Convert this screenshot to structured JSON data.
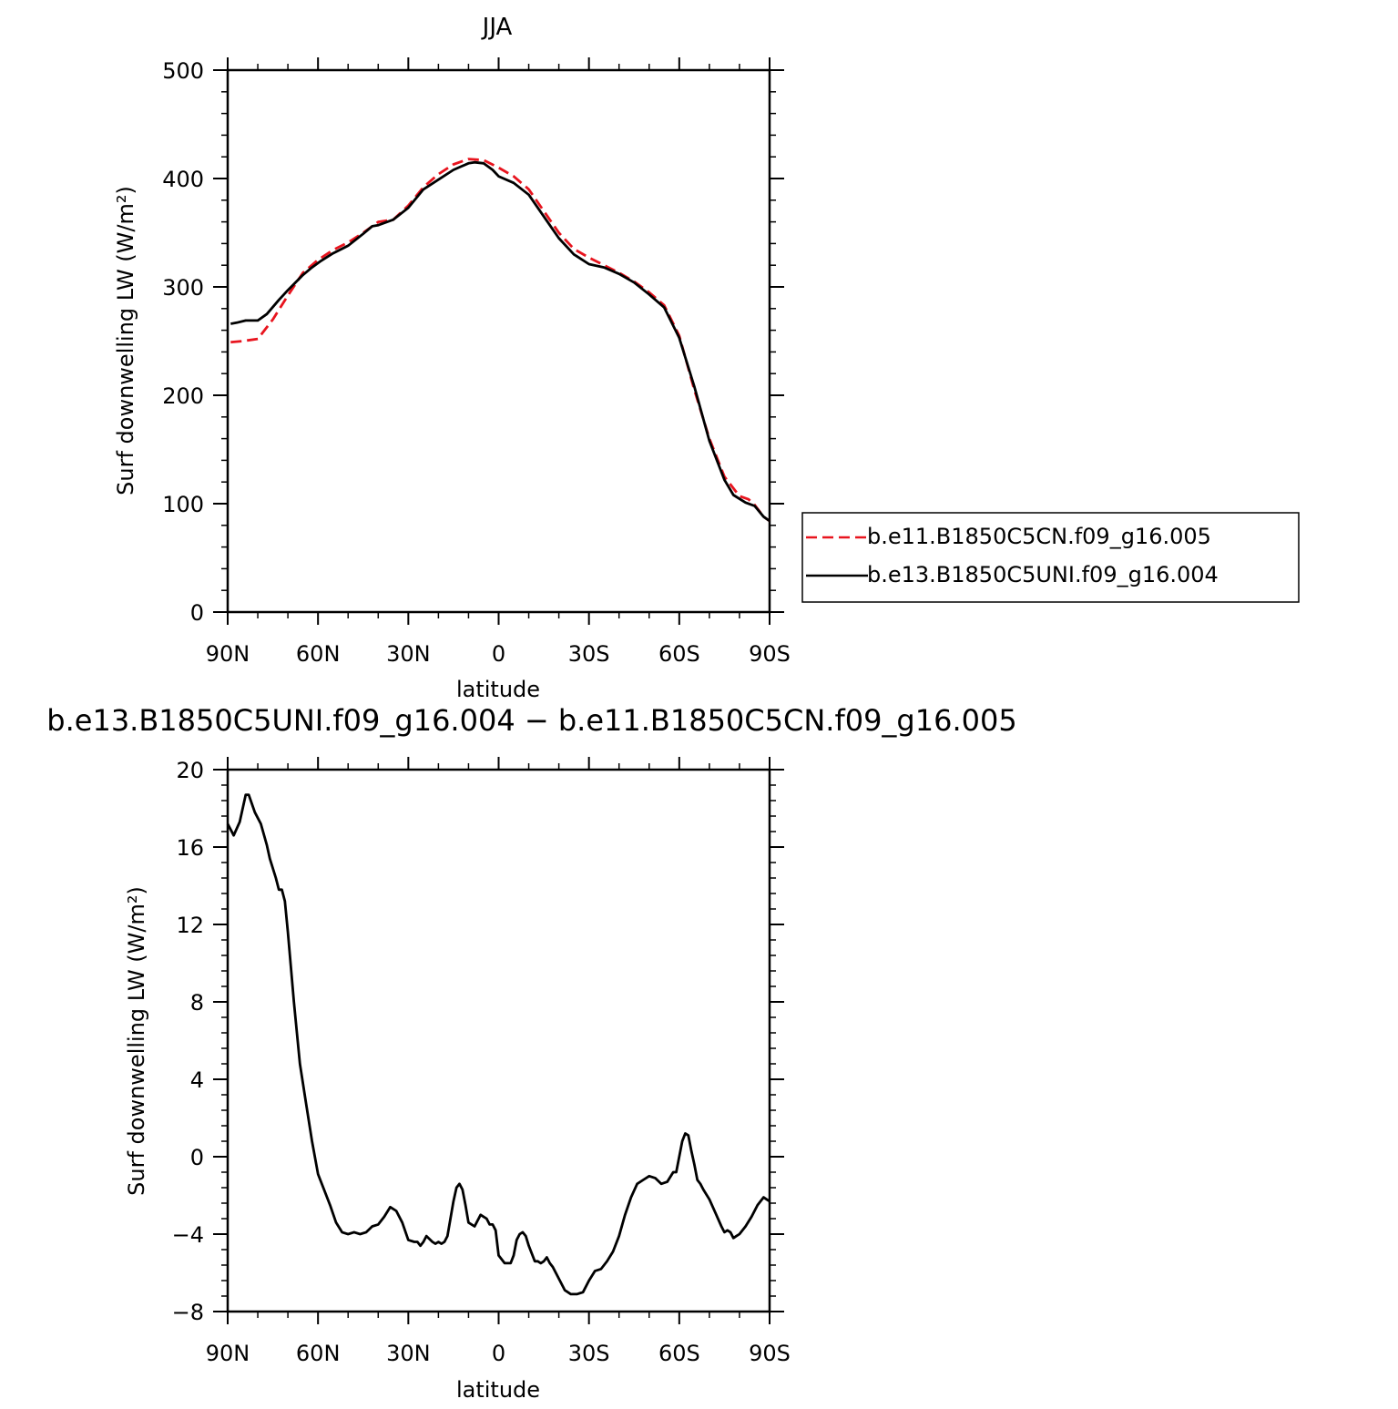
{
  "chart_data": [
    {
      "type": "line",
      "title": "JJA",
      "xlabel": "latitude",
      "ylabel": "Surf downwelling LW (W/m²)",
      "xlim": [
        90,
        -90
      ],
      "ylim": [
        0,
        500
      ],
      "x_ticks": [
        {
          "value": 90,
          "label": "90N"
        },
        {
          "value": 60,
          "label": "60N"
        },
        {
          "value": 30,
          "label": "30N"
        },
        {
          "value": 0,
          "label": "0"
        },
        {
          "value": -30,
          "label": "30S"
        },
        {
          "value": -60,
          "label": "60S"
        },
        {
          "value": -90,
          "label": "90S"
        }
      ],
      "y_ticks": [
        {
          "value": 0,
          "label": "0"
        },
        {
          "value": 100,
          "label": "100"
        },
        {
          "value": 200,
          "label": "200"
        },
        {
          "value": 300,
          "label": "300"
        },
        {
          "value": 400,
          "label": "400"
        },
        {
          "value": 500,
          "label": "500"
        }
      ],
      "legend_placement": "right",
      "series": [
        {
          "name": "b.e11.B1850C5CN.f09_g16.005",
          "color": "#e8141e",
          "dash": "dashed",
          "x": [
            89,
            85,
            80,
            75,
            70,
            65,
            60,
            55,
            50,
            45,
            40,
            35,
            30,
            25,
            20,
            15,
            10,
            5,
            0,
            -5,
            -10,
            -15,
            -20,
            -25,
            -30,
            -35,
            -40,
            -45,
            -50,
            -55,
            -60,
            -65,
            -70,
            -75,
            -80,
            -83,
            -85,
            -88,
            -90
          ],
          "y": [
            249,
            250,
            252,
            270,
            292,
            313,
            325,
            334,
            341,
            350,
            360,
            362,
            375,
            392,
            404,
            413,
            418,
            417,
            410,
            402,
            390,
            370,
            350,
            335,
            327,
            320,
            313,
            305,
            295,
            283,
            255,
            205,
            160,
            125,
            107,
            104,
            99,
            88,
            84
          ]
        },
        {
          "name": "b.e13.B1850C5UNI.f09_g16.004",
          "color": "#000000",
          "dash": "solid",
          "x": [
            89,
            87,
            84,
            80,
            77,
            73,
            70,
            65,
            62,
            59,
            55,
            50,
            45,
            42,
            40,
            35,
            30,
            25,
            20,
            15,
            10,
            8,
            5,
            2,
            0,
            -5,
            -10,
            -15,
            -20,
            -25,
            -30,
            -35,
            -40,
            -45,
            -50,
            -55,
            -60,
            -65,
            -70,
            -75,
            -78,
            -82,
            -85,
            -88,
            -90
          ],
          "y": [
            266,
            267,
            269,
            269,
            275,
            288,
            297,
            311,
            318,
            324,
            331,
            338,
            349,
            356,
            357,
            362,
            373,
            390,
            399,
            408,
            414,
            415,
            414,
            408,
            402,
            396,
            385,
            365,
            345,
            330,
            321,
            318,
            312,
            304,
            293,
            281,
            253,
            208,
            158,
            122,
            108,
            101,
            98,
            88,
            84
          ]
        }
      ]
    },
    {
      "type": "line",
      "title": "b.e13.B1850C5UNI.f09_g16.004 − b.e11.B1850C5CN.f09_g16.005",
      "xlabel": "latitude",
      "ylabel": "Surf downwelling LW (W/m²)",
      "xlim": [
        90,
        -90
      ],
      "ylim": [
        -8,
        20
      ],
      "x_ticks": [
        {
          "value": 90,
          "label": "90N"
        },
        {
          "value": 60,
          "label": "60N"
        },
        {
          "value": 30,
          "label": "30N"
        },
        {
          "value": 0,
          "label": "0"
        },
        {
          "value": -30,
          "label": "30S"
        },
        {
          "value": -60,
          "label": "60S"
        },
        {
          "value": -90,
          "label": "90S"
        }
      ],
      "y_ticks": [
        {
          "value": -8,
          "label": "−8"
        },
        {
          "value": -4,
          "label": "−4"
        },
        {
          "value": 0,
          "label": "0"
        },
        {
          "value": 4,
          "label": "4"
        },
        {
          "value": 8,
          "label": "8"
        },
        {
          "value": 12,
          "label": "12"
        },
        {
          "value": 16,
          "label": "16"
        },
        {
          "value": 20,
          "label": "20"
        }
      ],
      "series": [
        {
          "color": "#000000",
          "dash": "solid",
          "x": [
            90,
            88,
            86,
            84,
            83,
            81,
            79,
            77,
            76,
            74,
            73,
            72,
            71,
            70,
            68,
            66,
            64,
            62,
            60,
            58,
            56,
            54,
            52,
            50,
            48,
            46,
            44,
            42,
            40,
            38,
            36,
            34,
            32,
            30,
            28,
            27,
            26,
            25,
            24,
            22,
            21,
            20,
            19,
            18,
            17,
            16,
            15,
            14,
            13,
            12,
            11,
            10,
            9,
            8,
            7,
            6,
            5,
            4,
            3,
            2,
            1,
            0,
            -2,
            -4,
            -5,
            -6,
            -7,
            -8,
            -9,
            -10,
            -11,
            -12,
            -13,
            -14,
            -15,
            -16,
            -17,
            -18,
            -20,
            -22,
            -24,
            -26,
            -28,
            -30,
            -32,
            -34,
            -36,
            -38,
            -40,
            -42,
            -44,
            -46,
            -48,
            -50,
            -52,
            -54,
            -56,
            -58,
            -59,
            -60,
            -61,
            -62,
            -63,
            -64,
            -65,
            -66,
            -67,
            -68,
            -70,
            -72,
            -74,
            -75,
            -76,
            -77,
            -78,
            -79,
            -80,
            -82,
            -84,
            -86,
            -87,
            -88,
            -89,
            -90
          ],
          "y": [
            17.2,
            16.6,
            17.3,
            18.7,
            18.7,
            17.8,
            17.2,
            16.1,
            15.4,
            14.4,
            13.8,
            13.8,
            13.2,
            11.6,
            8.0,
            4.8,
            2.8,
            0.8,
            -0.9,
            -1.7,
            -2.5,
            -3.4,
            -3.9,
            -4.0,
            -3.9,
            -4.0,
            -3.9,
            -3.6,
            -3.5,
            -3.1,
            -2.6,
            -2.8,
            -3.4,
            -4.3,
            -4.4,
            -4.4,
            -4.6,
            -4.4,
            -4.1,
            -4.4,
            -4.5,
            -4.4,
            -4.5,
            -4.4,
            -4.1,
            -3.2,
            -2.3,
            -1.6,
            -1.4,
            -1.7,
            -2.5,
            -3.4,
            -3.5,
            -3.6,
            -3.3,
            -3.0,
            -3.1,
            -3.2,
            -3.5,
            -3.5,
            -3.8,
            -5.1,
            -5.5,
            -5.5,
            -5.1,
            -4.3,
            -4.0,
            -3.9,
            -4.1,
            -4.6,
            -5.0,
            -5.4,
            -5.4,
            -5.5,
            -5.4,
            -5.2,
            -5.5,
            -5.7,
            -6.3,
            -6.9,
            -7.1,
            -7.1,
            -7.0,
            -6.4,
            -5.9,
            -5.8,
            -5.4,
            -4.9,
            -4.1,
            -3.0,
            -2.1,
            -1.4,
            -1.2,
            -1.0,
            -1.1,
            -1.4,
            -1.3,
            -0.8,
            -0.8,
            0.0,
            0.8,
            1.2,
            1.1,
            0.3,
            -0.4,
            -1.2,
            -1.4,
            -1.7,
            -2.2,
            -2.9,
            -3.6,
            -3.9,
            -3.8,
            -3.9,
            -4.2,
            -4.1,
            -4.0,
            -3.6,
            -3.1,
            -2.5,
            -2.3,
            -2.1,
            -2.2,
            -2.3
          ]
        }
      ]
    }
  ]
}
